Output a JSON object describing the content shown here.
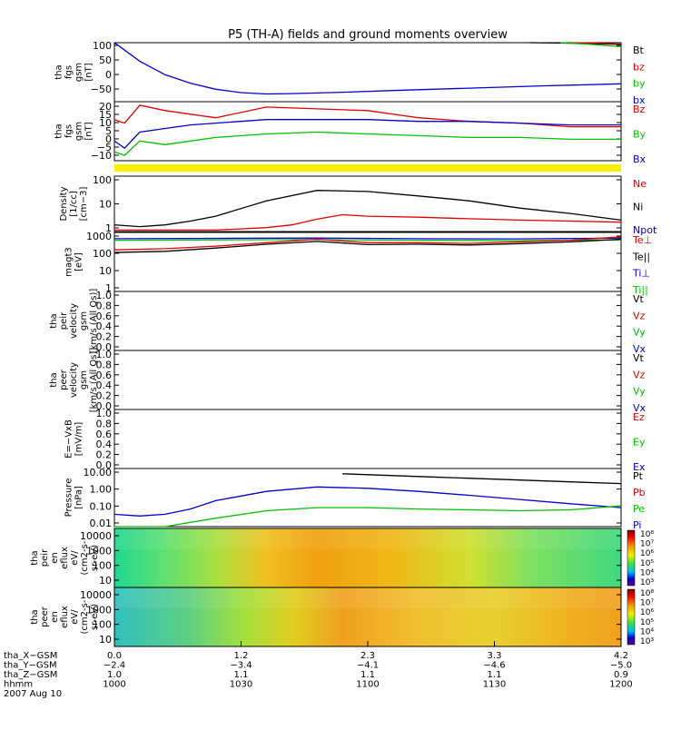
{
  "title": "P5 (TH-A) fields and ground moments overview",
  "colors": {
    "black": "#000000",
    "red": "#e00000",
    "green": "#00c000",
    "blue": "#0000d0",
    "yellow": "#f8f000"
  },
  "chart_data": [
    {
      "type": "line",
      "panel": "fgs-gsm-1",
      "ylabel": [
        "tha",
        "fgs",
        "gsm",
        "[nT]"
      ],
      "ylim": [
        -75,
        100
      ],
      "yticks": [
        "100",
        "50",
        "0",
        "−50"
      ],
      "legend": [
        {
          "name": "Bt",
          "color": "black"
        },
        {
          "name": "bz",
          "color": "red"
        },
        {
          "name": "by",
          "color": "green"
        },
        {
          "name": "bx",
          "color": "blue"
        }
      ],
      "series": [
        {
          "name": "bx",
          "color": "blue",
          "x": [
            0,
            0.05,
            0.1,
            0.15,
            0.2,
            0.25,
            0.3,
            0.35,
            0.45,
            0.55,
            0.7,
            0.85,
            1.0
          ],
          "y": [
            100,
            45,
            5,
            -20,
            -38,
            -48,
            -52,
            -51,
            -47,
            -42,
            -35,
            -28,
            -22
          ]
        },
        {
          "name": "Bt",
          "color": "black",
          "x": [
            0.82,
            0.88,
            0.94,
            1.0
          ],
          "y": [
            100,
            99,
            97,
            95
          ]
        },
        {
          "name": "bz",
          "color": "red",
          "x": [
            0.9,
            0.95,
            1.0
          ],
          "y": [
            100,
            99,
            96
          ]
        },
        {
          "name": "by",
          "color": "green",
          "x": [
            0.88,
            0.94,
            1.0
          ],
          "y": [
            100,
            95,
            88
          ]
        }
      ]
    },
    {
      "type": "line",
      "panel": "fgs-gsm-2",
      "ylabel": [
        "tha",
        "fgs",
        "gsm",
        "[nT]"
      ],
      "ylim": [
        -13,
        20
      ],
      "yticks": [
        "20",
        "15",
        "10",
        "5",
        "0",
        "−5",
        "−10"
      ],
      "legend": [
        {
          "name": "Bz",
          "color": "red"
        },
        {
          "name": "By",
          "color": "green"
        },
        {
          "name": "Bx",
          "color": "blue"
        }
      ],
      "series": [
        {
          "name": "Bz",
          "color": "red",
          "x": [
            0,
            0.02,
            0.05,
            0.1,
            0.15,
            0.2,
            0.3,
            0.4,
            0.5,
            0.6,
            0.7,
            0.8,
            0.9,
            1.0
          ],
          "y": [
            10,
            8,
            18,
            15,
            13,
            11,
            17,
            16,
            15,
            11,
            9,
            8,
            6,
            6
          ]
        },
        {
          "name": "By",
          "color": "green",
          "x": [
            0,
            0.02,
            0.05,
            0.1,
            0.15,
            0.2,
            0.3,
            0.4,
            0.5,
            0.6,
            0.7,
            0.8,
            0.9,
            1.0
          ],
          "y": [
            -8,
            -10,
            -2,
            -4,
            -2,
            0,
            2,
            3,
            2,
            1,
            0,
            0,
            -1,
            -1
          ]
        },
        {
          "name": "Bx",
          "color": "blue",
          "x": [
            0,
            0.02,
            0.05,
            0.1,
            0.15,
            0.2,
            0.3,
            0.4,
            0.5,
            0.6,
            0.7,
            0.8,
            0.9,
            1.0
          ],
          "y": [
            -2,
            -6,
            3,
            5,
            7,
            8,
            10,
            10,
            10,
            9,
            9,
            8,
            7,
            7
          ]
        }
      ]
    },
    {
      "type": "line",
      "panel": "density",
      "ylabel": [
        "Density",
        "[1/cc]",
        "[cm−3]"
      ],
      "ylim": [
        0.6,
        200
      ],
      "scale": "log",
      "yticks": [
        "100",
        "10",
        "1"
      ],
      "legend": [
        {
          "name": "Ne",
          "color": "red"
        },
        {
          "name": "Ni",
          "color": "black"
        },
        {
          "name": "Npot",
          "color": "blue"
        }
      ],
      "series": [
        {
          "name": "Ni",
          "color": "black",
          "x": [
            0,
            0.05,
            0.1,
            0.15,
            0.2,
            0.3,
            0.4,
            0.5,
            0.6,
            0.7,
            0.8,
            0.9,
            1.0
          ],
          "y": [
            1.2,
            1.0,
            1.2,
            1.8,
            3,
            15,
            45,
            40,
            25,
            15,
            7,
            4,
            2
          ]
        },
        {
          "name": "Ne",
          "color": "red",
          "x": [
            0,
            0.1,
            0.2,
            0.3,
            0.35,
            0.4,
            0.45,
            0.5,
            0.6,
            0.7,
            0.8,
            0.9,
            1.0
          ],
          "y": [
            0.7,
            0.7,
            0.7,
            0.9,
            1.2,
            2.2,
            3.5,
            3,
            2.7,
            2.3,
            2,
            1.8,
            1.6
          ]
        }
      ]
    },
    {
      "type": "line",
      "panel": "temperature",
      "ylabel": [
        "magt3",
        "[eV]"
      ],
      "ylim": [
        1,
        1000
      ],
      "scale": "log",
      "yticks": [
        "1000",
        "100",
        "10",
        "1"
      ],
      "legend": [
        {
          "name": "Te⊥",
          "color": "red"
        },
        {
          "name": "Te||",
          "color": "black"
        },
        {
          "name": "Ti⊥",
          "color": "blue"
        },
        {
          "name": "Ti||",
          "color": "green"
        }
      ],
      "series": [
        {
          "name": "Ti⊥",
          "color": "blue",
          "x": [
            0,
            0.2,
            0.4,
            0.6,
            0.8,
            1.0
          ],
          "y": [
            480,
            500,
            520,
            480,
            470,
            520
          ]
        },
        {
          "name": "Ti||",
          "color": "green",
          "x": [
            0,
            0.2,
            0.4,
            0.6,
            0.8,
            1.0
          ],
          "y": [
            400,
            420,
            430,
            400,
            380,
            420
          ]
        },
        {
          "name": "Te⊥",
          "color": "red",
          "x": [
            0,
            0.1,
            0.2,
            0.3,
            0.4,
            0.5,
            0.6,
            0.7,
            0.8,
            0.9,
            1.0
          ],
          "y": [
            130,
            150,
            200,
            300,
            450,
            300,
            300,
            280,
            330,
            400,
            600
          ]
        },
        {
          "name": "Te||",
          "color": "black",
          "x": [
            0,
            0.1,
            0.2,
            0.3,
            0.4,
            0.5,
            0.6,
            0.7,
            0.8,
            0.9,
            1.0
          ],
          "y": [
            95,
            110,
            160,
            250,
            350,
            240,
            250,
            230,
            270,
            330,
            450
          ]
        }
      ]
    },
    {
      "type": "line",
      "panel": "peir-velocity",
      "ylabel": [
        "tha",
        "peir",
        "velocity",
        "gsm",
        "[km/s (All Qs)]"
      ],
      "ylim": [
        0,
        1
      ],
      "yticks": [
        "1.0",
        "0.8",
        "0.6",
        "0.4",
        "0.2",
        "0.0"
      ],
      "legend": [
        {
          "name": "Vt",
          "color": "black"
        },
        {
          "name": "Vz",
          "color": "red"
        },
        {
          "name": "Vy",
          "color": "green"
        },
        {
          "name": "Vx",
          "color": "blue"
        }
      ],
      "series": []
    },
    {
      "type": "line",
      "panel": "peer-velocity",
      "ylabel": [
        "tha",
        "peer",
        "velocity",
        "gsm",
        "[km/s (All Qs)]"
      ],
      "ylim": [
        0,
        1
      ],
      "yticks": [
        "1.0",
        "0.8",
        "0.6",
        "0.4",
        "0.2",
        "0.0"
      ],
      "legend": [
        {
          "name": "Vt",
          "color": "black"
        },
        {
          "name": "Vz",
          "color": "red"
        },
        {
          "name": "Vy",
          "color": "green"
        },
        {
          "name": "Vx",
          "color": "blue"
        }
      ],
      "series": []
    },
    {
      "type": "line",
      "panel": "e-field",
      "ylabel": [
        "E=−VxB",
        "[mV/m]"
      ],
      "ylim": [
        0,
        1
      ],
      "yticks": [
        "1.0",
        "0.8",
        "0.6",
        "0.4",
        "0.2",
        "0.0"
      ],
      "legend": [
        {
          "name": "Ez",
          "color": "red"
        },
        {
          "name": "Ey",
          "color": "green"
        },
        {
          "name": "Ex",
          "color": "blue"
        }
      ],
      "series": []
    },
    {
      "type": "line",
      "panel": "pressure",
      "ylabel": [
        "Pressure",
        "[nPa]"
      ],
      "ylim": [
        0.01,
        20
      ],
      "scale": "log",
      "yticks": [
        "10.00",
        "1.00",
        "0.10",
        "0.01"
      ],
      "legend": [
        {
          "name": "Pt",
          "color": "black"
        },
        {
          "name": "Pb",
          "color": "red"
        },
        {
          "name": "Pe",
          "color": "green"
        },
        {
          "name": "Pi",
          "color": "blue"
        }
      ],
      "series": [
        {
          "name": "Pi",
          "color": "blue",
          "x": [
            0,
            0.05,
            0.1,
            0.15,
            0.2,
            0.3,
            0.4,
            0.5,
            0.6,
            0.7,
            0.8,
            0.9,
            1.0
          ],
          "y": [
            0.05,
            0.04,
            0.05,
            0.1,
            0.3,
            1.0,
            1.8,
            1.5,
            1.0,
            0.6,
            0.35,
            0.2,
            0.12
          ]
        },
        {
          "name": "Pe",
          "color": "green",
          "x": [
            0,
            0.1,
            0.2,
            0.3,
            0.4,
            0.5,
            0.6,
            0.7,
            0.8,
            0.9,
            1.0
          ],
          "y": [
            0.008,
            0.01,
            0.03,
            0.08,
            0.12,
            0.12,
            0.1,
            0.09,
            0.08,
            0.09,
            0.15
          ]
        },
        {
          "name": "Pt",
          "color": "black",
          "x": [
            0.45,
            0.6,
            0.75,
            0.9,
            1.0
          ],
          "y": [
            10,
            7,
            5,
            3.5,
            2.8
          ]
        }
      ]
    },
    {
      "type": "heatmap",
      "panel": "peir-eflux",
      "ylabel": [
        "tha",
        "peir",
        "en",
        "eflux",
        "eV/",
        "(cm2-s-",
        "sr-eV)"
      ],
      "yticks": [
        "10000",
        "1000",
        "100",
        "10"
      ],
      "colorbar_ticks": [
        "10⁸",
        "10⁷",
        "10⁶",
        "10⁵",
        "10⁴",
        "10³"
      ]
    },
    {
      "type": "heatmap",
      "panel": "peer-eflux",
      "ylabel": [
        "tha",
        "peer",
        "en",
        "eflux",
        "eV/",
        "(cm2-s-",
        "sr-eV)"
      ],
      "yticks": [
        "10000",
        "1000",
        "100",
        "10"
      ],
      "colorbar_ticks": [
        "10⁸",
        "10⁷",
        "10⁶",
        "10⁵",
        "10⁴",
        "10³"
      ]
    }
  ],
  "x_axis": {
    "ticks_rows": [
      {
        "label": "tha_X−GSM",
        "values": [
          "0.0",
          "1.2",
          "2.3",
          "3.3",
          "4.2"
        ]
      },
      {
        "label": "tha_Y−GSM",
        "values": [
          "−2.4",
          "−3.4",
          "−4.1",
          "−4.6",
          "−5.0"
        ]
      },
      {
        "label": "tha_Z−GSM",
        "values": [
          "1.0",
          "1.1",
          "1.1",
          "1.1",
          "0.9"
        ]
      },
      {
        "label": "hhmm",
        "values": [
          "1000",
          "1030",
          "1100",
          "1130",
          "1200"
        ]
      }
    ],
    "date": "2007 Aug 10"
  }
}
